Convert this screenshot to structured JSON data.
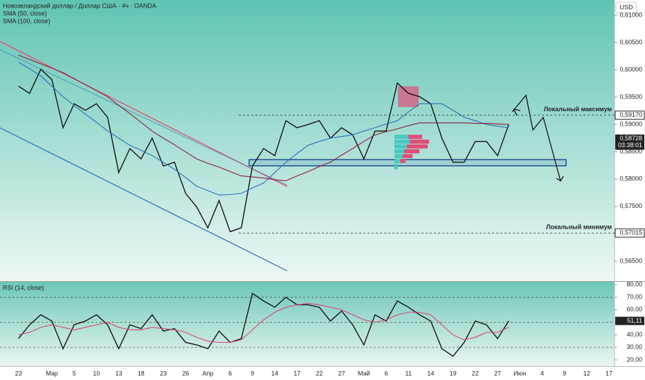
{
  "chart_data": [
    {
      "type": "line",
      "title": "Новозеландский доллар / Доллар США · 4ч · OANDA",
      "currency": "USD",
      "categories": [
        "23",
        null,
        null,
        "Мар",
        null,
        "5",
        null,
        "10",
        null,
        "13",
        null,
        "18",
        null,
        "23",
        null,
        "26",
        null,
        "Апр",
        null,
        "6",
        null,
        "9",
        null,
        "14",
        null,
        "17",
        null,
        "22",
        null,
        "27",
        null,
        "Май",
        null,
        "6",
        null,
        "11",
        null,
        "14",
        null,
        "19",
        null,
        "22",
        null,
        "27",
        null,
        "Июн",
        null,
        "4",
        null,
        "9",
        null,
        "12",
        null,
        "17"
      ],
      "series": [
        {
          "color": "#111111",
          "values": [
            0.597,
            0.5957,
            0.6001,
            0.5982,
            0.5894,
            0.5938,
            0.5926,
            0.5938,
            0.5913,
            0.5812,
            0.5856,
            0.5837,
            0.5875,
            0.5824,
            0.5831,
            0.5774,
            0.5749,
            0.5711,
            0.5761,
            0.5704,
            0.5711,
            0.5824,
            0.5856,
            0.5843,
            0.5907,
            0.5894,
            0.59,
            0.5907,
            0.5875,
            0.5894,
            0.5881,
            0.5837,
            0.5888,
            0.5888,
            0.5976,
            0.5957,
            0.5951,
            0.5938,
            0.5875,
            0.5831,
            0.5831,
            0.5869,
            0.5869,
            0.5843,
            0.59,
            null,
            null,
            null,
            null,
            null,
            null,
            null,
            null,
            null
          ]
        },
        {
          "name": "SMA (50, close)",
          "color": "#2a6db5",
          "values": [
            0.6014,
            0.6002,
            0.5989,
            0.597,
            0.5951,
            0.5935,
            0.5919,
            0.5904,
            0.5888,
            0.5875,
            0.5862,
            0.5853,
            0.5843,
            0.5831,
            0.5818,
            0.5803,
            0.5787,
            0.5779,
            0.5771,
            0.5772,
            0.5774,
            0.5784,
            0.5793,
            0.5812,
            0.5831,
            0.5847,
            0.5862,
            0.5869,
            0.5875,
            0.5878,
            0.5881,
            0.5888,
            0.5894,
            0.5901,
            0.5907,
            0.5923,
            0.5938,
            0.5938,
            0.5938,
            0.5926,
            0.5913,
            0.5907,
            0.59,
            0.5897,
            0.5894,
            null,
            null,
            null,
            null,
            null,
            null,
            null,
            null,
            null
          ]
        },
        {
          "name": "SMA (100, close)",
          "color": "#8b1a3a",
          "values": [
            0.6027,
            0.6019,
            0.6011,
            0.6003,
            0.5995,
            0.5984,
            0.5973,
            0.5962,
            0.5951,
            0.5935,
            0.592,
            0.5904,
            0.5888,
            0.5875,
            0.5863,
            0.585,
            0.5837,
            0.5829,
            0.5822,
            0.5814,
            0.5806,
            0.5804,
            0.5802,
            0.5799,
            0.5797,
            0.5806,
            0.5814,
            0.5823,
            0.5831,
            0.5844,
            0.5856,
            0.5869,
            0.5881,
            0.5887,
            0.5892,
            0.5898,
            0.5903,
            0.5903,
            0.5903,
            0.5903,
            0.5903,
            0.5902,
            0.5902,
            0.5901,
            0.59,
            null,
            null,
            null,
            null,
            null,
            null,
            null,
            null,
            null
          ]
        }
      ],
      "ylim": [
        0.56133,
        0.61278
      ],
      "yticks": [
        {
          "value": 0.61,
          "label": "0,61000"
        },
        {
          "value": 0.605,
          "label": "0,60500"
        },
        {
          "value": 0.6,
          "label": "0,60000"
        },
        {
          "value": 0.595,
          "label": "0,59500"
        },
        {
          "value": 0.59,
          "label": "0,59000"
        },
        {
          "value": 0.585,
          "label": "0,58500"
        },
        {
          "value": 0.58,
          "label": "0,58000"
        },
        {
          "value": 0.575,
          "label": "0,57500"
        },
        {
          "value": 0.57,
          "label": "0,57000"
        },
        {
          "value": 0.565,
          "label": "0,56500"
        }
      ],
      "levels": [
        {
          "value": 0.5917,
          "label": "0,59170",
          "text": "Локальный максимум"
        },
        {
          "value": 0.57015,
          "label": "0,57015",
          "text": "Локальный минимум"
        }
      ],
      "last_price": {
        "value": 0.58728,
        "label": "0,58728",
        "countdown": "03:38:01"
      }
    },
    {
      "type": "line",
      "series": [
        {
          "name": "RSI (14, close)",
          "color": "#111111",
          "values": [
            37,
            48,
            56,
            51,
            29,
            48,
            51,
            56,
            48,
            29,
            48,
            45,
            56,
            43,
            45,
            34,
            32,
            29,
            43,
            34,
            37,
            73,
            67,
            62,
            70,
            64,
            64,
            62,
            51,
            59,
            48,
            32,
            56,
            51,
            67,
            62,
            56,
            51,
            29,
            23,
            34,
            51,
            48,
            37,
            51.11,
            null,
            null,
            null,
            null,
            null,
            null,
            null,
            null,
            null
          ]
        },
        {
          "color": "#d9466f",
          "values": [
            40,
            42,
            46,
            48,
            46,
            44,
            46,
            48,
            50,
            46,
            44,
            44,
            46,
            45,
            44,
            42,
            38,
            35,
            34,
            34,
            36,
            44,
            52,
            58,
            62,
            64,
            65,
            64,
            62,
            60,
            56,
            52,
            50,
            52,
            56,
            58,
            58,
            56,
            48,
            40,
            36,
            38,
            42,
            42,
            46,
            null,
            null,
            null,
            null,
            null,
            null,
            null,
            null,
            null
          ]
        }
      ],
      "ylim": [
        15.05,
        82.75
      ],
      "yticks": [
        {
          "value": 80,
          "label": "80,00"
        },
        {
          "value": 70,
          "label": "70,00"
        },
        {
          "value": 60,
          "label": "60,00"
        },
        {
          "value": 50,
          "label": "50,00"
        },
        {
          "value": 40,
          "label": "40,00"
        },
        {
          "value": 30,
          "label": "30,00"
        },
        {
          "value": 20,
          "label": "20,00"
        }
      ],
      "band_lines": [
        70,
        50,
        30
      ],
      "last_value": {
        "value": 51.11,
        "label": "51,11"
      }
    }
  ]
}
